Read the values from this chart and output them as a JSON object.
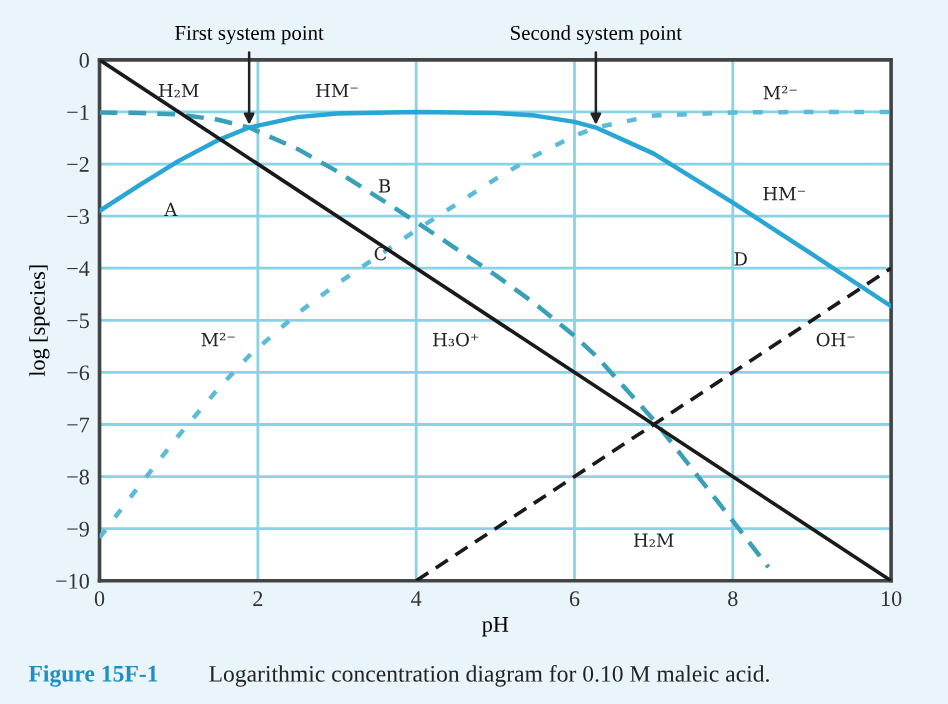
{
  "chart_data": {
    "type": "line",
    "xlabel": "pH",
    "ylabel": "log [species]",
    "xlim": [
      0,
      10
    ],
    "ylim": [
      -10,
      0
    ],
    "xticks": [
      0,
      2,
      4,
      6,
      8,
      10
    ],
    "yticks": [
      0,
      {
        "value": -1,
        "label": "−1"
      },
      {
        "value": -2,
        "label": "−2"
      },
      {
        "value": -3,
        "label": "−3"
      },
      {
        "value": -4,
        "label": "−4"
      },
      {
        "value": -5,
        "label": "−5"
      },
      {
        "value": -6,
        "label": "−6"
      },
      {
        "value": -7,
        "label": "−7"
      },
      {
        "value": -8,
        "label": "−8"
      },
      {
        "value": -9,
        "label": "−9"
      },
      {
        "value": -10,
        "label": "−10"
      }
    ],
    "grid": true,
    "legend": false,
    "series": [
      {
        "color": "#3aa0b8",
        "line_style": "dashed",
        "x": [
          0,
          0.5,
          1,
          1.5,
          1.89,
          2.5,
          3,
          4,
          5,
          5.5,
          6,
          6.27,
          7,
          8,
          8.45
        ],
        "values": [
          -1.01,
          -1.02,
          -1.05,
          -1.15,
          -1.3,
          -1.71,
          -2.14,
          -3.11,
          -4.13,
          -4.68,
          -5.3,
          -5.68,
          -6.91,
          -8.85,
          -9.74
        ]
      },
      {
        "color": "#2aa6d6",
        "line_style": "solid",
        "x": [
          0,
          0.5,
          1,
          1.5,
          1.89,
          2.5,
          3,
          4,
          5,
          5.5,
          6,
          6.27,
          7,
          8,
          9,
          10
        ],
        "values": [
          -2.9,
          -2.41,
          -1.94,
          -1.54,
          -1.3,
          -1.1,
          -1.03,
          -1.0,
          -1.02,
          -1.07,
          -1.19,
          -1.3,
          -1.8,
          -2.74,
          -3.73,
          -4.73
        ]
      },
      {
        "color": "#5bbcd8",
        "line_style": "dotted",
        "x": [
          0,
          0.5,
          1,
          1.5,
          1.89,
          2.5,
          3,
          4,
          5,
          5.5,
          6,
          6.27,
          7,
          8,
          9,
          10
        ],
        "values": [
          -9.17,
          -8.18,
          -7.21,
          -6.31,
          -5.68,
          -4.87,
          -4.3,
          -3.27,
          -2.29,
          -1.84,
          -1.46,
          -1.3,
          -1.07,
          -1.01,
          -1.0,
          -1.0
        ]
      },
      {
        "color": "#1a1a1a",
        "line_style": "solid",
        "x": [
          0,
          10
        ],
        "values": [
          0,
          -10
        ]
      },
      {
        "color": "#1a1a1a",
        "line_style": "dashed",
        "x": [
          4,
          10
        ],
        "values": [
          -10,
          -4
        ]
      }
    ],
    "annotations": [
      {
        "text": "First system point",
        "x": 1.89,
        "y": -1.3
      },
      {
        "text": "Second system point",
        "x": 6.27,
        "y": -1.3
      },
      "H₂M",
      "HM⁻",
      "M²⁻",
      "HM⁻",
      "M²⁻",
      "H₃O⁺",
      "OH⁻",
      "H₂M",
      "A",
      "B",
      "C",
      "D",
      "Figure 15F-1",
      "Logarithmic concentration diagram for 0.10 M maleic acid."
    ]
  }
}
